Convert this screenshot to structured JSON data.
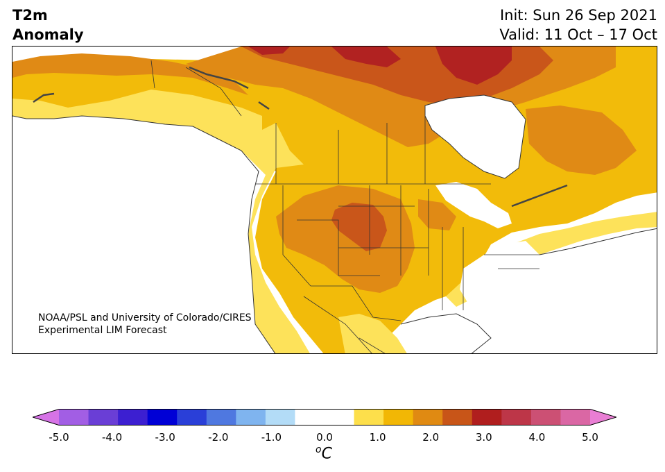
{
  "title": {
    "line1": "T2m",
    "line2": "Anomaly"
  },
  "dates": {
    "init": "Init: Sun 26 Sep 2021",
    "valid": "Valid: 11 Oct – 17 Oct"
  },
  "credit": {
    "line1": "NOAA/PSL and University of Colorado/CIRES",
    "line2": "Experimental LIM Forecast"
  },
  "colorbar": {
    "unit_symbol": "o",
    "unit_letter": "C",
    "min": -5.0,
    "max": 5.0,
    "step": 0.5,
    "ticks": [
      "-5.0",
      "-4.0",
      "-3.0",
      "-2.0",
      "-1.0",
      "0.0",
      "1.0",
      "2.0",
      "3.0",
      "4.0",
      "5.0"
    ],
    "colors": [
      "#d673e6",
      "#a25ee4",
      "#6a3ed6",
      "#3c1fd1",
      "#0000d6",
      "#2a3fd8",
      "#4f78e0",
      "#7fb4ef",
      "#b3dcf7",
      "#ffffff",
      "#ffffff",
      "#fddf4b",
      "#f2b705",
      "#e08a12",
      "#c85518",
      "#b01e1e",
      "#bd3648",
      "#cc5074",
      "#da67a4",
      "#e97ed4"
    ]
  },
  "map_legend_colors": {
    "band_0_5_1": "#fde25a",
    "band_1_1_5": "#f2bb0a",
    "band_1_5_2": "#e08a15",
    "band_2_2_5": "#c9561a",
    "band_2_5_3": "#b12221"
  }
}
